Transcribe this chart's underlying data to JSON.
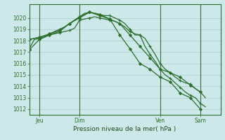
{
  "bg_color": "#cce8e8",
  "grid_color": "#aacccc",
  "line_color": "#2d6e2d",
  "marker_color": "#2d6e2d",
  "xlabel": "Pression niveau de la mer( hPa )",
  "ylim": [
    1011.5,
    1021.2
  ],
  "yticks": [
    1012,
    1013,
    1014,
    1015,
    1016,
    1017,
    1018,
    1019,
    1020
  ],
  "xtick_labels": [
    "Jeu",
    "Dim",
    "Ven",
    "Sam"
  ],
  "xtick_positions": [
    2,
    10,
    26,
    34
  ],
  "vline_positions": [
    2,
    10,
    26,
    34
  ],
  "xlim": [
    0,
    38
  ],
  "series1_x": [
    0,
    1,
    2,
    3,
    4,
    5,
    6,
    7,
    8,
    9,
    10,
    11,
    12,
    13,
    14,
    15,
    16,
    17,
    18,
    19,
    20,
    21,
    22,
    23,
    24,
    25,
    26,
    27,
    28,
    29,
    30,
    31,
    32,
    33,
    34,
    35
  ],
  "series1_y": [
    1017.3,
    1018.1,
    1018.2,
    1018.3,
    1018.6,
    1018.8,
    1019.0,
    1019.2,
    1019.5,
    1019.8,
    1020.1,
    1020.4,
    1020.5,
    1020.4,
    1020.3,
    1020.2,
    1020.2,
    1020.0,
    1019.8,
    1019.5,
    1019.0,
    1018.5,
    1018.5,
    1017.5,
    1016.8,
    1016.2,
    1015.5,
    1015.0,
    1014.7,
    1014.3,
    1013.9,
    1013.5,
    1013.2,
    1013.0,
    1012.5,
    1012.2
  ],
  "series2_x": [
    0,
    1,
    2,
    3,
    4,
    5,
    6,
    7,
    8,
    9,
    10,
    11,
    12,
    13,
    14,
    15,
    16,
    17,
    18,
    19,
    20,
    21,
    22,
    23,
    24,
    25,
    26,
    27,
    28,
    29,
    30,
    31,
    32,
    33,
    34,
    35
  ],
  "series2_y": [
    1018.1,
    1018.2,
    1018.3,
    1018.4,
    1018.5,
    1018.6,
    1018.7,
    1018.8,
    1018.9,
    1019.1,
    1019.8,
    1019.9,
    1020.0,
    1020.1,
    1020.0,
    1019.9,
    1019.8,
    1019.7,
    1019.5,
    1019.2,
    1018.8,
    1018.6,
    1018.5,
    1018.2,
    1017.5,
    1016.8,
    1016.0,
    1015.5,
    1015.2,
    1014.8,
    1014.5,
    1014.3,
    1014.2,
    1013.8,
    1013.5,
    1013.0
  ],
  "series3_x": [
    0,
    2,
    4,
    6,
    8,
    10,
    12,
    14,
    16,
    18,
    20,
    22,
    24,
    26,
    28,
    30,
    32,
    34
  ],
  "series3_y": [
    1018.1,
    1018.3,
    1018.6,
    1018.9,
    1019.5,
    1020.1,
    1020.5,
    1020.2,
    1019.9,
    1019.5,
    1018.5,
    1017.5,
    1016.5,
    1015.5,
    1015.2,
    1014.8,
    1014.1,
    1013.5
  ],
  "series4_x": [
    0,
    2,
    4,
    6,
    8,
    10,
    12,
    14,
    16,
    18,
    20,
    22,
    24,
    26,
    28,
    30,
    32,
    34
  ],
  "series4_y": [
    1017.2,
    1018.1,
    1018.5,
    1018.8,
    1019.5,
    1020.0,
    1020.5,
    1020.3,
    1019.9,
    1018.5,
    1017.3,
    1016.0,
    1015.5,
    1014.8,
    1014.4,
    1013.4,
    1013.0,
    1012.0
  ]
}
